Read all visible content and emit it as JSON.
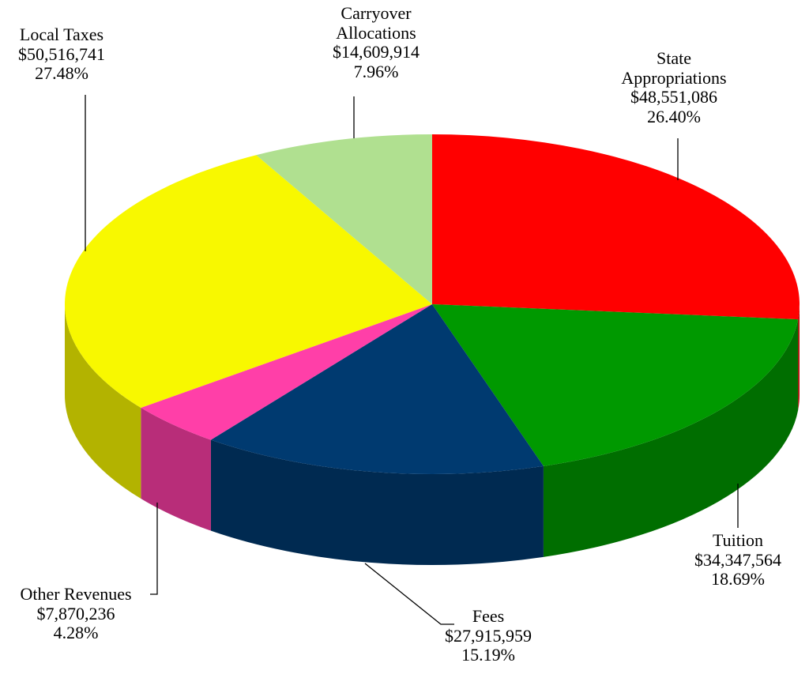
{
  "chart_data": {
    "type": "pie3d",
    "categories": [
      "State Appropriations",
      "Tuition",
      "Fees",
      "Other Revenues",
      "Local Taxes",
      "Carryover Allocations"
    ],
    "values": [
      48551086,
      34347564,
      27915959,
      7870236,
      50516741,
      14609914
    ],
    "value_labels": [
      "$48,551,086",
      "$34,347,564",
      "$27,915,959",
      "$7,870,236",
      "$50,516,741",
      "$14,609,914"
    ],
    "percents": [
      26.4,
      18.69,
      15.19,
      4.28,
      27.48,
      7.96
    ],
    "percent_labels": [
      "26.40%",
      "18.69%",
      "15.19%",
      "4.28%",
      "27.48%",
      "7.96%"
    ],
    "colors": [
      "#ff0000",
      "#009900",
      "#003a70",
      "#ff3fa8",
      "#f8f800",
      "#b0e090"
    ]
  }
}
